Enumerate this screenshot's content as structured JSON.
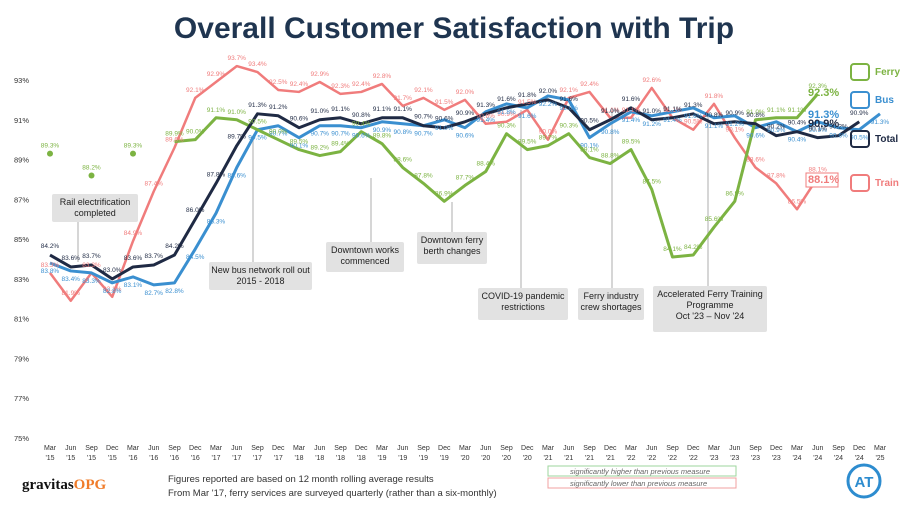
{
  "title": "Overall Customer Satisfaction with Trip",
  "chart_data": {
    "type": "line",
    "ylim": [
      75,
      93
    ],
    "yticks": [
      "93%",
      "91%",
      "89%",
      "87%",
      "85%",
      "83%",
      "81%",
      "79%",
      "77%",
      "75%"
    ],
    "ytick_values": [
      93,
      91,
      89,
      87,
      85,
      83,
      81,
      79,
      77,
      75
    ],
    "categories": [
      "Mar '15",
      "Jun '15",
      "Sep '15",
      "Dec '15",
      "Mar '16",
      "Jun '16",
      "Sep '16",
      "Dec '16",
      "Mar '17",
      "Jun '17",
      "Sep '17",
      "Dec '17",
      "Mar '18",
      "Jun '18",
      "Sep '18",
      "Dec '18",
      "Mar '19",
      "Jun '19",
      "Sep '19",
      "Dec '19",
      "Mar '20",
      "Jun '20",
      "Sep '20",
      "Dec '20",
      "Mar '21",
      "Jun '21",
      "Sep '21",
      "Dec '21",
      "Mar '22",
      "Jun '22",
      "Sep '22",
      "Dec '22",
      "Mar '23",
      "Jun '23",
      "Sep '23",
      "Dec '23",
      "Mar '24",
      "Jun '24",
      "Sep '24",
      "Dec '24",
      "Mar '25"
    ],
    "grid": false,
    "series": [
      {
        "name": "Ferry",
        "color": "#7cb342",
        "values": [
          89.3,
          null,
          88.2,
          null,
          89.3,
          null,
          89.9,
          90.0,
          91.1,
          91.0,
          90.5,
          90.0,
          89.5,
          89.2,
          89.4,
          90.4,
          89.8,
          88.6,
          87.8,
          86.9,
          87.7,
          88.4,
          90.3,
          89.5,
          89.7,
          90.3,
          89.1,
          88.8,
          89.5,
          87.5,
          84.1,
          84.2,
          85.6,
          86.9,
          91.0,
          91.1,
          91.1,
          92.3,
          null,
          null,
          null
        ],
        "labels": [
          "89.3%",
          null,
          "88.2%",
          null,
          "89.3%",
          null,
          "89.9%",
          "90.0%",
          "91.1%",
          "91.0%",
          "90.5%",
          "90.0%",
          "89.5%",
          "89.2%",
          "89.4%",
          "90.4%",
          "89.8%",
          "88.6%",
          "87.8%",
          "86.9%",
          "87.7%",
          "88.4%",
          "90.3%",
          "89.5%",
          "89.7%",
          "90.3%",
          "89.1%",
          "88.8%",
          "89.5%",
          "87.5%",
          "84.1%",
          "84.2%",
          "85.6%",
          "86.9%",
          "91.0%",
          "91.1%",
          "91.1%",
          "92.3%",
          null,
          null,
          null
        ]
      },
      {
        "name": "Bus",
        "color": "#3a8fd0",
        "values": [
          83.8,
          83.4,
          83.3,
          82.8,
          83.1,
          82.7,
          82.8,
          84.5,
          86.3,
          88.6,
          90.5,
          90.7,
          90.1,
          90.7,
          90.7,
          90.6,
          90.9,
          90.8,
          90.7,
          91.0,
          90.6,
          91.4,
          91.8,
          91.6,
          92.2,
          92.0,
          90.1,
          90.8,
          91.4,
          91.2,
          91.4,
          91.6,
          91.1,
          91.2,
          90.6,
          90.9,
          90.4,
          90.9,
          90.6,
          90.5,
          91.3
        ],
        "labels": [
          "83.8%",
          "83.4%",
          "83.3%",
          "82.8%",
          "83.1%",
          "82.7%",
          "82.8%",
          "84.5%",
          "86.3%",
          "88.6%",
          "90.5%",
          "90.7%",
          "90.1%",
          "90.7%",
          "90.7%",
          "90.6%",
          "90.9%",
          "90.8%",
          "90.7%",
          "91.0%",
          "90.6%",
          "91.4%",
          "91.8%",
          "91.6%",
          "92.2%",
          "92.0%",
          "90.1%",
          "90.8%",
          "91.4%",
          "91.2%",
          "91.4%",
          "91.6%",
          "91.1%",
          "91.2%",
          "90.6%",
          "90.9%",
          "90.4%",
          "90.9%",
          "90.6%",
          "90.5%",
          "91.3%"
        ]
      },
      {
        "name": "Total",
        "color": "#1f2a44",
        "values": [
          84.2,
          83.6,
          83.7,
          83.0,
          83.6,
          83.7,
          84.2,
          86.0,
          87.8,
          89.7,
          91.3,
          91.2,
          90.6,
          91.0,
          91.1,
          90.8,
          91.1,
          91.1,
          90.7,
          90.6,
          90.9,
          91.3,
          91.6,
          91.8,
          92.0,
          91.6,
          90.5,
          91.0,
          91.6,
          91.0,
          91.1,
          91.3,
          90.8,
          90.9,
          90.8,
          90.2,
          90.4,
          90.1,
          90.2,
          90.9,
          null
        ],
        "labels": [
          "84.2%",
          "83.6%",
          "83.7%",
          "83.0%",
          "83.6%",
          "83.7%",
          "84.2%",
          "86.0%",
          "87.8%",
          "89.7%",
          "91.3%",
          "91.2%",
          "90.6%",
          "91.0%",
          "91.1%",
          "90.8%",
          "91.1%",
          "91.1%",
          "90.7%",
          "90.6%",
          "90.9%",
          "91.3%",
          "91.6%",
          "91.8%",
          "92.0%",
          "91.6%",
          "90.5%",
          "91.0%",
          "91.6%",
          "91.0%",
          "91.1%",
          "91.3%",
          "90.8%",
          "90.9%",
          "90.8%",
          "90.2%",
          "90.4%",
          "90.1%",
          "90.2%",
          "90.9%",
          null
        ]
      },
      {
        "name": "Train",
        "color": "#f07c7c",
        "values": [
          83.3,
          81.9,
          83.3,
          82.1,
          84.9,
          87.4,
          89.6,
          92.1,
          92.9,
          93.7,
          93.4,
          92.5,
          92.4,
          92.9,
          92.3,
          92.4,
          92.8,
          91.7,
          92.1,
          91.5,
          92.0,
          90.8,
          90.9,
          91.5,
          90.0,
          92.1,
          92.4,
          91.1,
          91.1,
          92.6,
          91.1,
          90.5,
          91.8,
          90.1,
          88.6,
          87.8,
          86.5,
          88.1,
          null,
          null,
          null
        ],
        "labels": [
          "83.3%",
          "81.9%",
          "83.3%",
          "82.1%",
          "84.9%",
          "87.4%",
          "89.6%",
          "92.1%",
          "92.9%",
          "93.7%",
          "93.4%",
          "92.5%",
          "92.4%",
          "92.9%",
          "92.3%",
          "92.4%",
          "92.8%",
          "91.7%",
          "92.1%",
          "91.5%",
          "92.0%",
          "90.8%",
          "90.9%",
          "91.5%",
          "90.0%",
          "92.1%",
          "92.4%",
          "91.1%",
          "91.1%",
          "92.6%",
          "91.1%",
          "90.5%",
          "91.8%",
          "90.1%",
          "88.6%",
          "87.8%",
          "86.5%",
          "88.1%",
          null,
          null,
          null
        ]
      }
    ],
    "end_labels": [
      {
        "series": "Ferry",
        "text": "92.3%"
      },
      {
        "series": "Bus",
        "text": "91.3%"
      },
      {
        "series": "Total",
        "text": "90.9%"
      },
      {
        "series": "Train",
        "text": "88.1%"
      }
    ],
    "annotations": [
      "Rail electrification completed",
      "New bus network roll out 2015 - 2018",
      "Downtown works commenced",
      "Downtown ferry berth changes",
      "COVID-19 pandemic restrictions",
      "Ferry industry crew shortages",
      "Accelerated Ferry Training Programme Oct '23 – Nov '24"
    ]
  },
  "footer": {
    "brand_main": "gravitas",
    "brand_accent": "OPG",
    "note1": "Figures reported are based on 12 month rolling average results",
    "note2": "From Mar '17, ferry services are surveyed quarterly (rather than a six-monthly)",
    "legend_higher": "significantly higher than previous measure",
    "legend_lower": "significantly lower than previous measure",
    "legend_higher_color": "#9ed59e",
    "legend_lower_color": "#f2a0a0",
    "logo_text": "AT",
    "logo_color": "#2d8ccf"
  }
}
